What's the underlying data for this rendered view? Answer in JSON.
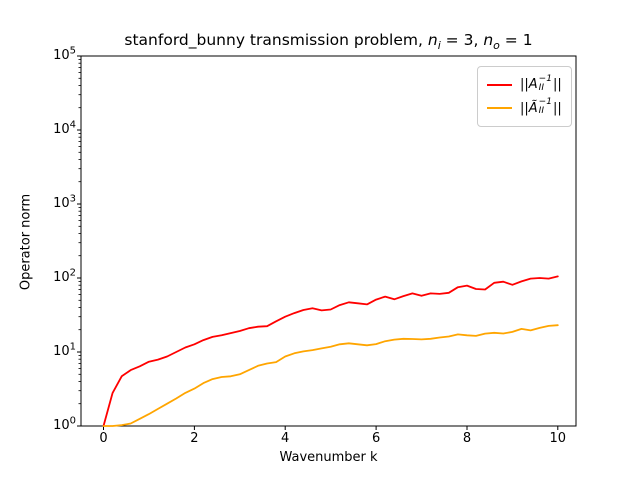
{
  "figure": {
    "background": "#ffffff",
    "frame_color": "#000000"
  },
  "title": {
    "prefix": "stanford_bunny transmission problem, ",
    "var_i": "n",
    "sub_i": "i",
    "eq_i": " = 3, ",
    "var_o": "n",
    "sub_o": "o",
    "eq_o": " = 1"
  },
  "axes": {
    "x_label": "Wavenumber k",
    "y_label": "Operator norm"
  },
  "legend": {
    "entries": [
      {
        "pre": "||",
        "var": "A",
        "sup": "−1",
        "sub": "II",
        "post": "||",
        "color": "#ff0000"
      },
      {
        "pre": "||",
        "var": "Ã",
        "sup": "−1",
        "sub": "II",
        "post": "||",
        "color": "#ffa500"
      }
    ]
  },
  "chart_data": {
    "type": "line",
    "title": "stanford_bunny transmission problem, n_i = 3, n_o = 1",
    "xlabel": "Wavenumber k",
    "ylabel": "Operator norm",
    "y_scale": "log",
    "grid": false,
    "legend_position": "upper right",
    "xlim": [
      -0.495,
      10.4
    ],
    "ylim_exponents": [
      0,
      5
    ],
    "x_ticks": [
      0,
      2,
      4,
      6,
      8,
      10
    ],
    "y_tick_base": "10",
    "y_tick_exponents": [
      0,
      1,
      2,
      3,
      4,
      5
    ],
    "x": [
      0,
      0.2,
      0.4,
      0.6,
      0.8,
      1,
      1.2,
      1.4,
      1.6,
      1.8,
      2,
      2.2,
      2.4,
      2.6,
      2.8,
      3,
      3.2,
      3.4,
      3.6,
      3.8,
      4,
      4.2,
      4.4,
      4.6,
      4.8,
      5,
      5.2,
      5.4,
      5.6,
      5.8,
      6,
      6.2,
      6.4,
      6.6,
      6.8,
      7,
      7.2,
      7.4,
      7.6,
      7.8,
      8,
      8.2,
      8.4,
      8.6,
      8.8,
      9,
      9.2,
      9.4,
      9.6,
      9.8,
      10
    ],
    "series": [
      {
        "name": "||A_II^-1||",
        "color": "#ff0000",
        "values": [
          1.0,
          2.8,
          4.7,
          5.7,
          6.4,
          7.4,
          7.9,
          8.7,
          10.0,
          11.5,
          12.7,
          14.5,
          16.0,
          16.8,
          18.0,
          19.2,
          21.0,
          22.0,
          22.3,
          26.0,
          30.0,
          33.5,
          37.0,
          39.0,
          36.5,
          37.5,
          43.0,
          47.0,
          45.5,
          44.0,
          51.0,
          56.0,
          51.5,
          57.0,
          62.0,
          57.5,
          62.0,
          61.0,
          63.0,
          75.0,
          79.0,
          71.0,
          70.0,
          86.0,
          89.0,
          81.0,
          90.0,
          98.0,
          100.0,
          98.0,
          105.0
        ]
      },
      {
        "name": "||Ã_II^-1||",
        "color": "#ffa500",
        "values": [
          1.0,
          1.0,
          1.03,
          1.08,
          1.25,
          1.45,
          1.7,
          2.0,
          2.35,
          2.8,
          3.2,
          3.8,
          4.3,
          4.6,
          4.7,
          5.0,
          5.7,
          6.5,
          7.0,
          7.3,
          8.7,
          9.6,
          10.2,
          10.6,
          11.2,
          11.8,
          12.7,
          13.1,
          12.7,
          12.3,
          12.8,
          14.0,
          14.7,
          15.1,
          15.0,
          14.8,
          15.1,
          15.7,
          16.2,
          17.3,
          16.8,
          16.5,
          17.7,
          18.2,
          17.8,
          18.7,
          20.5,
          19.6,
          21.2,
          22.5,
          23.0
        ]
      }
    ]
  }
}
